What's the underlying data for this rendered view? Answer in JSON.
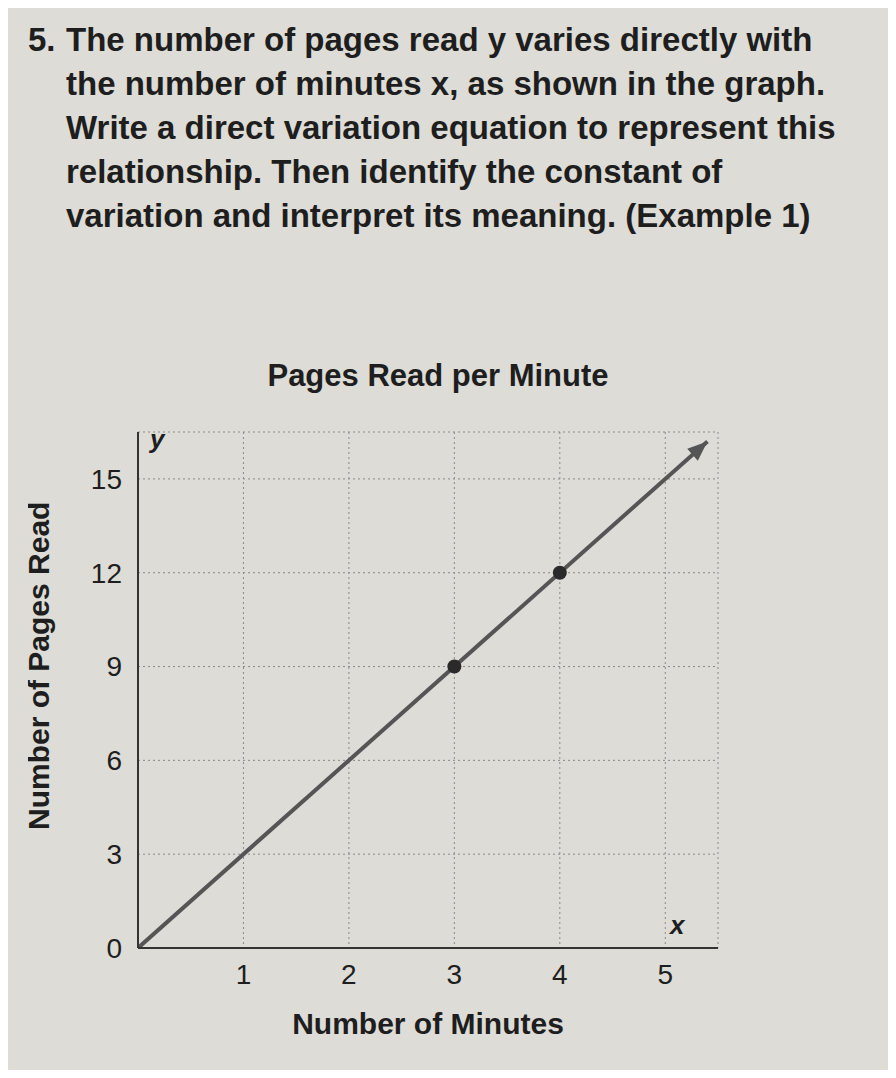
{
  "question": {
    "number": "5.",
    "text": "The number of pages read y varies directly with the number of minutes x, as shown in the graph. Write a direct variation equation to represent this relationship. Then identify the constant of variation and interpret its meaning. (Example 1)"
  },
  "chart_data": {
    "type": "line",
    "title": "Pages Read per Minute",
    "x_label": "Number of Minutes",
    "y_label": "Number of Pages Read",
    "annotations": [
      {
        "text": "y",
        "axis": "y"
      },
      {
        "text": "x",
        "axis": "x"
      }
    ],
    "xlim": [
      0,
      5.5
    ],
    "xticks": [
      1,
      2,
      3,
      4,
      5
    ],
    "ylim": [
      0,
      16.5
    ],
    "yticks": [
      0,
      3,
      6,
      9,
      12,
      15
    ],
    "grid": true,
    "series": [
      {
        "type": "line",
        "color": "#555555",
        "marker": "none",
        "line_style": "solid",
        "x": [
          0,
          5.4
        ],
        "values": [
          0,
          16.2
        ]
      },
      {
        "type": "scatter",
        "color": "#2a2a2a",
        "marker": "circle",
        "x": [
          3,
          4
        ],
        "values": [
          9,
          12
        ]
      }
    ]
  }
}
